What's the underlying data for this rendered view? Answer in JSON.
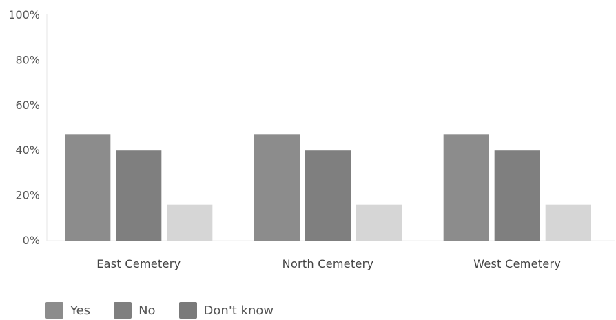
{
  "chart_data": {
    "type": "bar",
    "title": "",
    "xlabel": "",
    "ylabel": "",
    "ylim": [
      0,
      100
    ],
    "yticks": [
      "0%",
      "20%",
      "40%",
      "60%",
      "80%",
      "100%"
    ],
    "ytick_values": [
      0,
      20,
      40,
      60,
      80,
      100
    ],
    "categories": [
      "East Cemetery",
      "North Cemetery",
      "West Cemetery"
    ],
    "series": [
      {
        "name": "Yes",
        "color": "#8c8c8c",
        "values": [
          47,
          47,
          47
        ]
      },
      {
        "name": "No",
        "color": "#7f7f7f",
        "values": [
          40,
          40,
          40
        ]
      },
      {
        "name": "Don't know",
        "color": "#d6d6d6",
        "values": [
          16,
          16,
          16
        ]
      }
    ],
    "legend_position": "bottom-left",
    "grid": false
  }
}
